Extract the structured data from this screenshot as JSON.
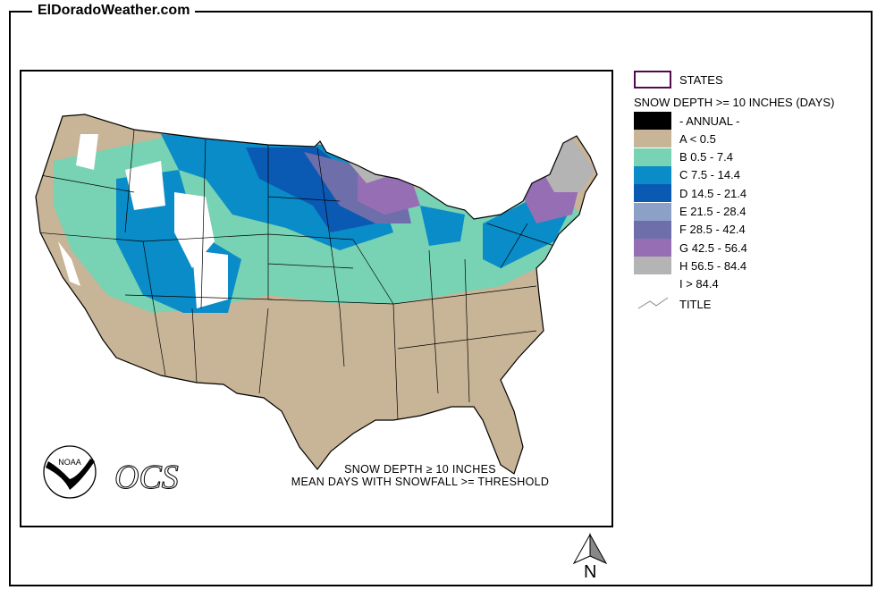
{
  "site_title": "ElDoradoWeather.com",
  "legend": {
    "states_label": "STATES",
    "heading": "SNOW DEPTH >= 10 INCHES (DAYS)",
    "items": [
      {
        "label": "- ANNUAL -",
        "color": "#000000"
      },
      {
        "label": "A < 0.5",
        "color": "#c8b496"
      },
      {
        "label": "B 0.5 - 7.4",
        "color": "#78d2b4"
      },
      {
        "label": "C 7.5 - 14.4",
        "color": "#0a8cc8"
      },
      {
        "label": "D 14.5 - 21.4",
        "color": "#0a5ab4"
      },
      {
        "label": "E 21.5 - 28.4",
        "color": "#8ca0c8"
      },
      {
        "label": "F 28.5 - 42.4",
        "color": "#6e6eaa"
      },
      {
        "label": "G 42.5 - 56.4",
        "color": "#966eb4"
      },
      {
        "label": "H 56.5 - 84.4",
        "color": "#b4b4b4"
      },
      {
        "label": "I > 84.4",
        "color": "#ffffff"
      }
    ],
    "title_label": "TITLE"
  },
  "map": {
    "title_line1": "SNOW DEPTH ≥ 10 INCHES",
    "title_line2": "MEAN DAYS WITH SNOWFALL >= THRESHOLD",
    "logo_noaa": "NOAA",
    "logo_ocs": "OCS",
    "north_label": "N"
  }
}
